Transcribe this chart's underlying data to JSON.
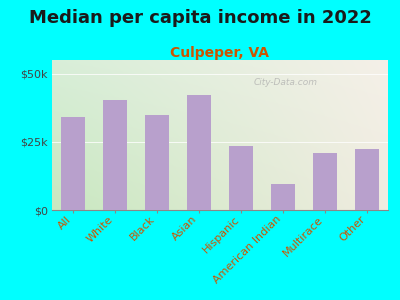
{
  "title": "Median per capita income in 2022",
  "subtitle": "Culpeper, VA",
  "categories": [
    "All",
    "White",
    "Black",
    "Asian",
    "Hispanic",
    "American Indian",
    "Multirace",
    "Other"
  ],
  "values": [
    34000,
    40500,
    35000,
    42000,
    23500,
    9500,
    21000,
    22500
  ],
  "bar_color": "#b8a0cc",
  "background_color": "#00FFFF",
  "plot_bg_topleft": "#d8eed8",
  "plot_bg_topright": "#f5f0e8",
  "plot_bg_bottomleft": "#c8e8c0",
  "plot_bg_bottomright": "#f0ece0",
  "title_color": "#1a1a1a",
  "subtitle_color": "#cc5500",
  "ytick_label_color": "#444444",
  "xtick_label_color": "#cc5500",
  "ytick_labels": [
    "$0",
    "$25k",
    "$50k"
  ],
  "ytick_values": [
    0,
    25000,
    50000
  ],
  "ylim": [
    0,
    55000
  ],
  "watermark": "City-Data.com",
  "title_fontsize": 13,
  "subtitle_fontsize": 10,
  "tick_fontsize": 8
}
